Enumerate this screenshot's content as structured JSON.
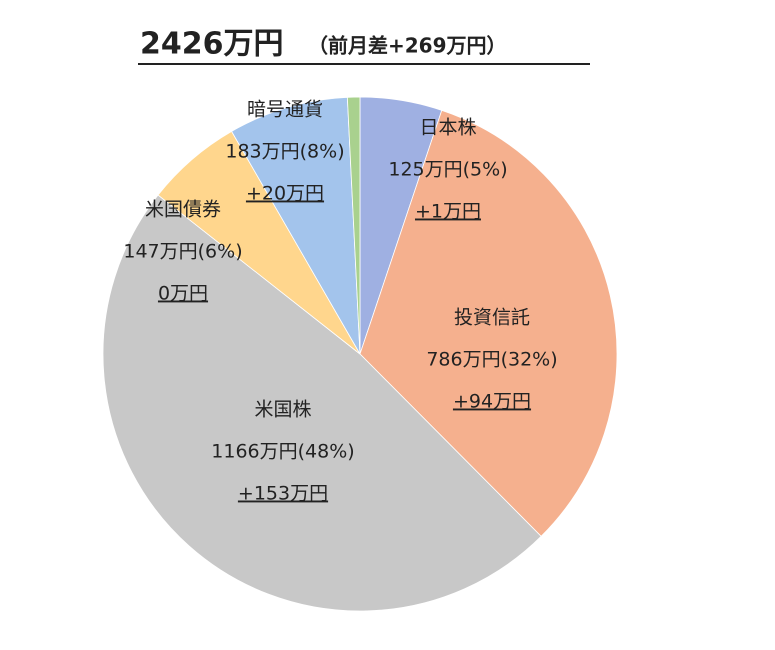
{
  "chart_data": {
    "type": "pie",
    "title": "2426万円",
    "subtitle": "（前月差+269万円）",
    "categories": [
      "日本株",
      "投資信託",
      "米国株",
      "米国債券",
      "暗号通貨",
      null
    ],
    "values": [
      125,
      786,
      1166,
      147,
      183,
      19
    ],
    "value_labels": [
      "125万円(5%)",
      "786万円(32%)",
      "1166万円(48%)",
      "147万円(6%)",
      "183万円(8%)",
      null
    ],
    "change_labels": [
      "+1万円",
      "+94万円",
      "+153万円",
      "0万円",
      "+20万円",
      null
    ],
    "colors": [
      "#9fb0e2",
      "#f5b08e",
      "#c8c8c8",
      "#ffd68d",
      "#a3c4ec",
      "#a9d18e"
    ]
  }
}
